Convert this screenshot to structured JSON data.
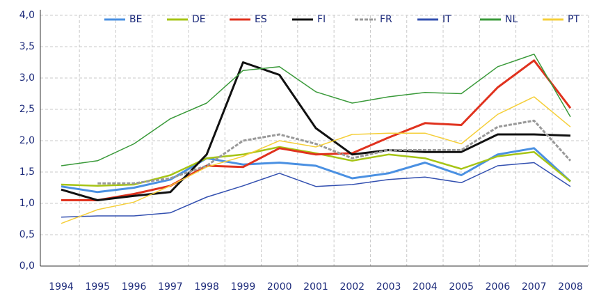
{
  "chart_data": {
    "type": "line",
    "categories": [
      "1994",
      "1995",
      "1996",
      "1997",
      "1998",
      "1999",
      "2000",
      "2001",
      "2002",
      "2003",
      "2004",
      "2005",
      "2006",
      "2007",
      "2008"
    ],
    "series": [
      {
        "name": "BE",
        "color": "#4a90e2",
        "values": [
          1.27,
          1.18,
          1.25,
          1.38,
          1.72,
          1.62,
          1.65,
          1.6,
          1.4,
          1.48,
          1.65,
          1.45,
          1.78,
          1.88,
          1.35
        ]
      },
      {
        "name": "DE",
        "color": "#a6c415",
        "values": [
          1.3,
          1.28,
          1.3,
          1.45,
          1.72,
          1.78,
          1.9,
          1.8,
          1.68,
          1.78,
          1.72,
          1.55,
          1.75,
          1.82,
          1.35
        ]
      },
      {
        "name": "ES",
        "color": "#e0321e",
        "values": [
          1.05,
          1.05,
          1.15,
          1.28,
          1.6,
          1.58,
          1.88,
          1.78,
          1.8,
          2.05,
          2.28,
          2.25,
          2.85,
          3.28,
          2.52
        ]
      },
      {
        "name": "FI",
        "color": "#111111",
        "values": [
          1.22,
          1.05,
          1.12,
          1.18,
          1.78,
          3.25,
          3.05,
          2.2,
          1.78,
          1.85,
          1.82,
          1.82,
          2.1,
          2.1,
          2.08
        ]
      },
      {
        "name": "FR",
        "color": "#999999",
        "dashed": true,
        "values": [
          null,
          1.32,
          1.32,
          1.4,
          1.6,
          2.0,
          2.1,
          1.95,
          1.72,
          1.85,
          1.85,
          1.85,
          2.22,
          2.32,
          1.68
        ]
      },
      {
        "name": "IT",
        "color": "#3350b0",
        "values": [
          0.78,
          0.8,
          0.8,
          0.85,
          1.1,
          1.28,
          1.48,
          1.27,
          1.3,
          1.38,
          1.42,
          1.33,
          1.6,
          1.65,
          1.27
        ]
      },
      {
        "name": "NL",
        "color": "#3a9a3a",
        "values": [
          1.6,
          1.68,
          1.95,
          2.35,
          2.6,
          3.12,
          3.18,
          2.78,
          2.6,
          2.7,
          2.77,
          2.75,
          3.18,
          3.38,
          2.38
        ]
      },
      {
        "name": "PT",
        "color": "#f5cf3a",
        "values": [
          0.68,
          0.9,
          1.02,
          1.28,
          1.58,
          1.75,
          2.0,
          1.9,
          2.1,
          2.12,
          2.12,
          1.95,
          2.42,
          2.7,
          2.22
        ]
      }
    ],
    "ylim": [
      0,
      4
    ],
    "yticks": [
      {
        "value": 0,
        "label": "0,0"
      },
      {
        "value": 0.5,
        "label": "0,5"
      },
      {
        "value": 1,
        "label": "1,0"
      },
      {
        "value": 1.5,
        "label": "1,5"
      },
      {
        "value": 2,
        "label": "2,0"
      },
      {
        "value": 2.5,
        "label": "2,5"
      },
      {
        "value": 3,
        "label": "3,0"
      },
      {
        "value": 3.5,
        "label": "3,5"
      },
      {
        "value": 4,
        "label": "4,0"
      }
    ],
    "grid": true,
    "legend": "top"
  }
}
